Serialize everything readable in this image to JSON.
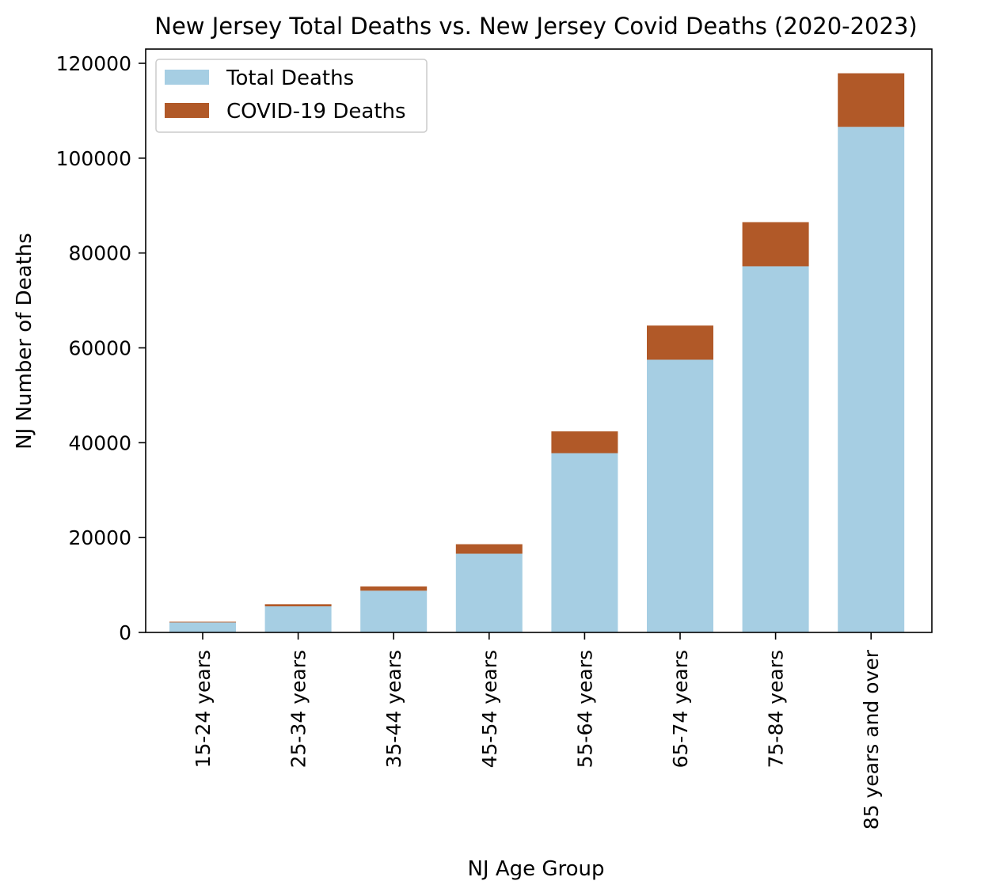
{
  "chart_data": {
    "type": "bar",
    "stacked": true,
    "title": "New Jersey Total Deaths vs. New Jersey Covid Deaths (2020-2023)",
    "xlabel": "NJ Age Group",
    "ylabel": "NJ Number of Deaths",
    "categories": [
      "15-24 years",
      "25-34 years",
      "35-44 years",
      "45-54 years",
      "55-64 years",
      "65-74 years",
      "75-84 years",
      "85 years and over"
    ],
    "series": [
      {
        "name": "Total Deaths",
        "color": "#a6cee3",
        "values": [
          2100,
          5500,
          8800,
          16600,
          37800,
          57500,
          77200,
          106600
        ]
      },
      {
        "name": "COVID-19 Deaths",
        "color": "#b15928",
        "values": [
          150,
          450,
          900,
          2000,
          4600,
          7200,
          9300,
          11300
        ]
      }
    ],
    "ylim": [
      0,
      123000
    ],
    "yticks": [
      0,
      20000,
      40000,
      60000,
      80000,
      100000,
      120000
    ],
    "grid": false,
    "legend_position": "upper-left"
  }
}
